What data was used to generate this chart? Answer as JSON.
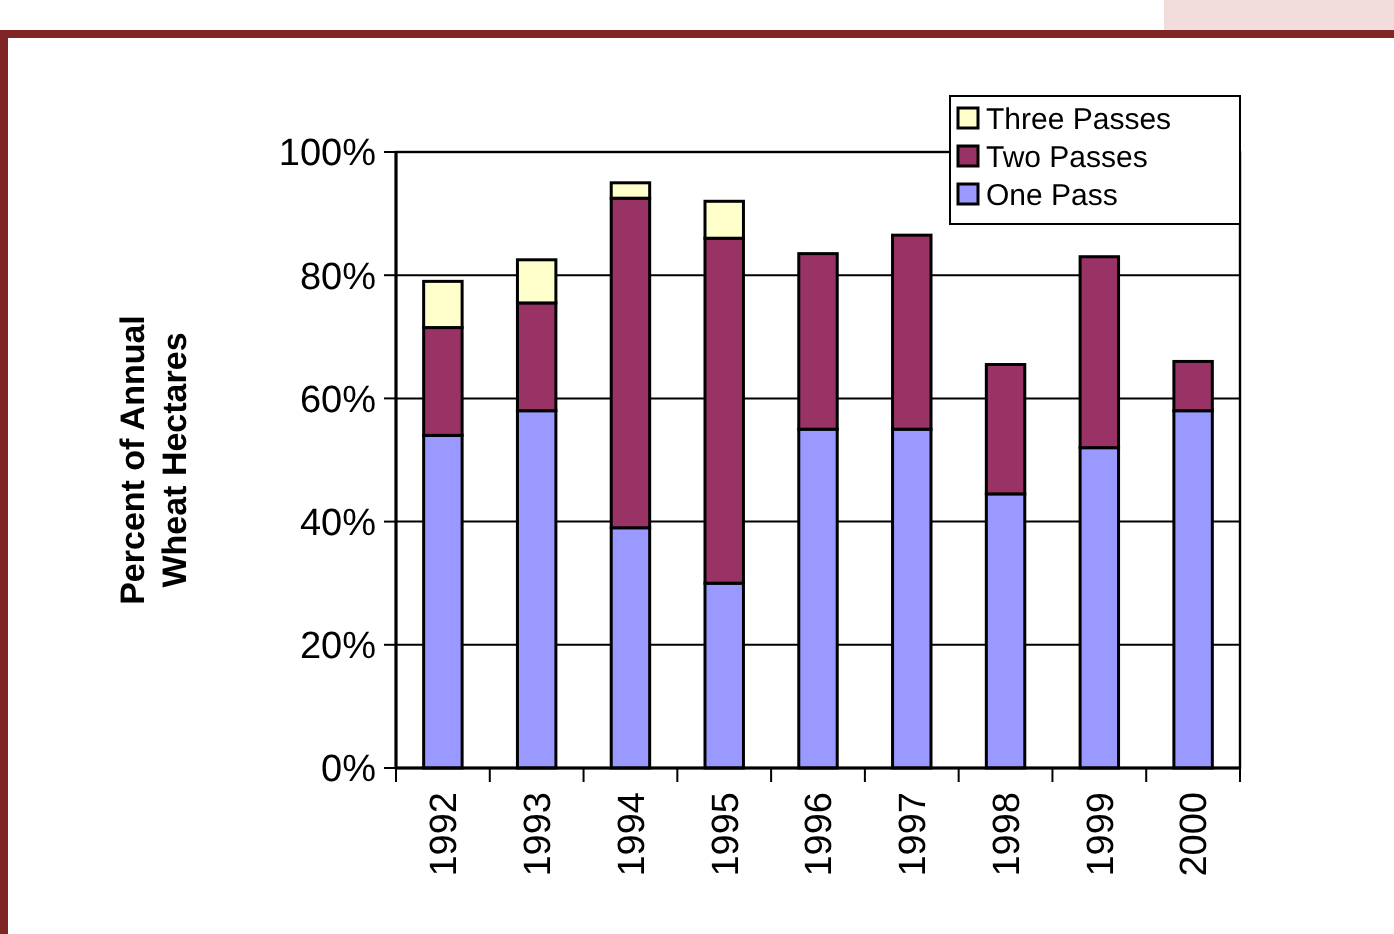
{
  "chart_data": {
    "type": "bar",
    "stacked": true,
    "ylabel": "Percent of Annual\nWheat Hectares",
    "categories": [
      "1992",
      "1993",
      "1994",
      "1995",
      "1996",
      "1997",
      "1998",
      "1999",
      "2000"
    ],
    "series": [
      {
        "name": "One Pass",
        "color": "#9999ff",
        "values": [
          54,
          58,
          39,
          30,
          55,
          55,
          44.5,
          52,
          58
        ]
      },
      {
        "name": "Two Passes",
        "color": "#993366",
        "values": [
          17.5,
          17.5,
          53.5,
          56,
          28.5,
          31.5,
          21,
          31,
          8
        ]
      },
      {
        "name": "Three Passes",
        "color": "#ffffcc",
        "values": [
          7.5,
          7,
          2.5,
          6,
          null,
          null,
          null,
          null,
          null
        ]
      }
    ],
    "ylim": [
      0,
      100
    ],
    "yticks": [
      {
        "value": 0,
        "label": "0%"
      },
      {
        "value": 20,
        "label": "20%"
      },
      {
        "value": 40,
        "label": "40%"
      },
      {
        "value": 60,
        "label": "60%"
      },
      {
        "value": 80,
        "label": "80%"
      },
      {
        "value": 100,
        "label": "100%"
      }
    ],
    "grid": "y",
    "legend": "top right"
  }
}
